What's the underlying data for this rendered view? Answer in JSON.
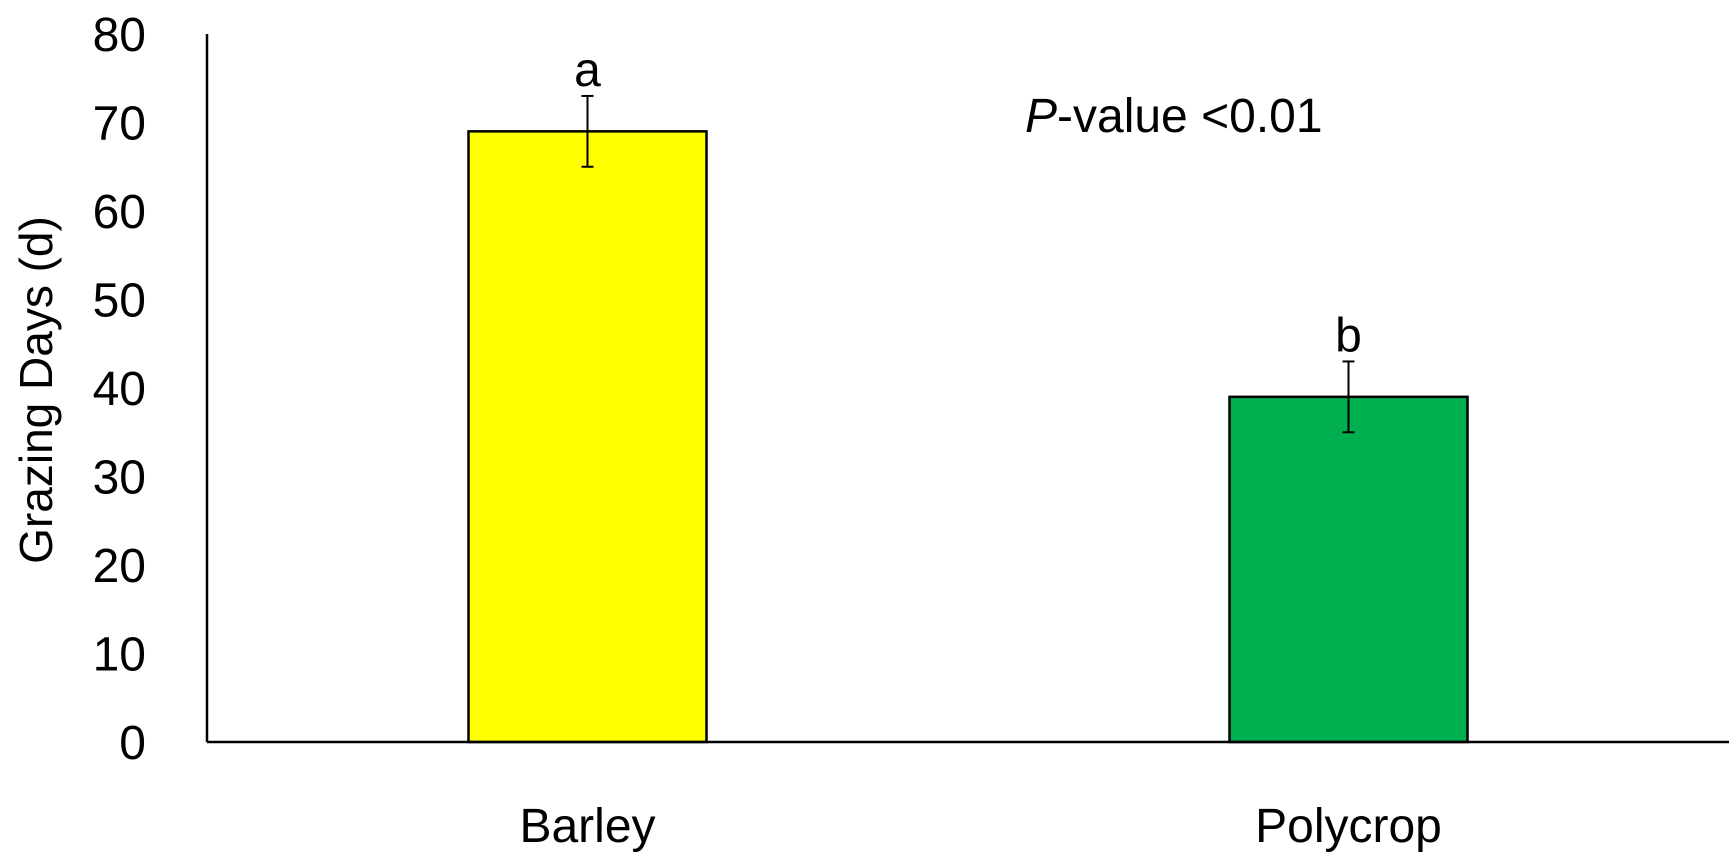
{
  "chart_data": {
    "type": "bar",
    "categories": [
      "Barley",
      "Polycrop"
    ],
    "values": [
      69,
      39
    ],
    "errors": [
      4,
      4
    ],
    "colors": [
      "#ffff00",
      "#00b050"
    ],
    "significance_letters": [
      "a",
      "b"
    ],
    "title": "",
    "xlabel": "",
    "ylabel": "Grazing Days (d)",
    "ylim": [
      0,
      80
    ],
    "yticks": [
      0,
      10,
      20,
      30,
      40,
      50,
      60,
      70,
      80
    ],
    "grid": false,
    "legend": "none",
    "annotation": {
      "italic_part": "P",
      "rest": "-value <0.01"
    }
  }
}
